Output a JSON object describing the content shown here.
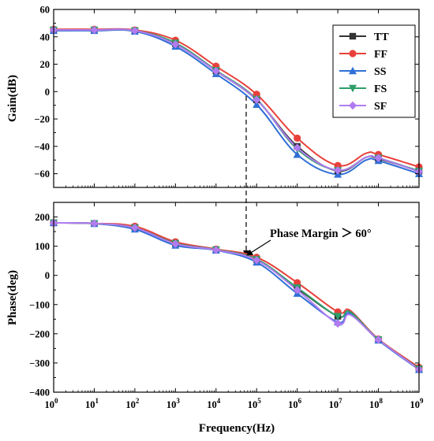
{
  "chart_data": [
    {
      "type": "line",
      "panel": "top",
      "xlabel": "",
      "ylabel": "Gain(dB)",
      "x_scale": "log",
      "xlim": [
        1,
        1000000000
      ],
      "ylim": [
        -70,
        60
      ],
      "yticks": [
        -60,
        -40,
        -20,
        0,
        20,
        40,
        60
      ],
      "ytick_labels": [
        "−60",
        "−40",
        "−20",
        "0",
        "20",
        "40",
        "60"
      ],
      "legend": {
        "position": "top-right",
        "entries": [
          "TT",
          "FF",
          "SS",
          "FS",
          "SF"
        ]
      },
      "series": [
        {
          "name": "TT",
          "color": "#333333",
          "marker": "square",
          "x": [
            1,
            10,
            100,
            1000,
            10000,
            100000,
            1000000,
            10000000,
            50000000,
            100000000,
            1000000000
          ],
          "y": [
            45,
            45,
            44.5,
            35,
            15,
            -6,
            -40,
            -58,
            -48,
            -49,
            -58
          ]
        },
        {
          "name": "FF",
          "color": "#e8403a",
          "marker": "circle",
          "x": [
            1,
            10,
            100,
            1000,
            10000,
            100000,
            1000000,
            10000000,
            50000000,
            100000000,
            1000000000
          ],
          "y": [
            45.5,
            45.5,
            45,
            37.5,
            18.5,
            -2,
            -34,
            -54,
            -45,
            -46,
            -55
          ]
        },
        {
          "name": "SS",
          "color": "#2f6fd6",
          "marker": "triangle-up",
          "x": [
            1,
            10,
            100,
            1000,
            10000,
            100000,
            1000000,
            10000000,
            50000000,
            100000000,
            1000000000
          ],
          "y": [
            44.5,
            44.5,
            44,
            33,
            13,
            -9.5,
            -46,
            -60.5,
            -50,
            -50.5,
            -60
          ]
        },
        {
          "name": "FS",
          "color": "#2e9e6a",
          "marker": "triangle-down",
          "x": [
            1,
            10,
            100,
            1000,
            10000,
            100000,
            1000000,
            10000000,
            50000000,
            100000000,
            1000000000
          ],
          "y": [
            45,
            45,
            44.5,
            35.5,
            15.5,
            -5.5,
            -42,
            -57.5,
            -48,
            -48.5,
            -58
          ]
        },
        {
          "name": "SF",
          "color": "#b07cf0",
          "marker": "diamond",
          "x": [
            1,
            10,
            100,
            1000,
            10000,
            100000,
            1000000,
            10000000,
            50000000,
            100000000,
            1000000000
          ],
          "y": [
            45,
            45,
            44.5,
            34.5,
            15,
            -6,
            -41,
            -57.5,
            -48,
            -48.5,
            -58.5
          ]
        }
      ],
      "annotations": [
        {
          "type": "dashed-arrow",
          "x": 50000,
          "y_from": 2,
          "direction": "down"
        }
      ]
    },
    {
      "type": "line",
      "panel": "bottom",
      "xlabel": "Frequency(Hz)",
      "ylabel": "Phase(deg)",
      "x_scale": "log",
      "xlim": [
        1,
        1000000000
      ],
      "ylim": [
        -400,
        250
      ],
      "xticks": [
        1,
        10,
        100,
        1000,
        10000,
        100000,
        1000000,
        10000000,
        100000000,
        1000000000
      ],
      "xtick_exponents": [
        "0",
        "1",
        "2",
        "3",
        "4",
        "5",
        "6",
        "7",
        "8",
        "9"
      ],
      "xtick_base": "10",
      "yticks": [
        -400,
        -300,
        -200,
        -100,
        0,
        100,
        200
      ],
      "ytick_labels": [
        "−400",
        "−300",
        "−200",
        "−100",
        "0",
        "100",
        "200"
      ],
      "series": [
        {
          "name": "TT",
          "color": "#333333",
          "marker": "square",
          "x": [
            1,
            10,
            100,
            1000,
            10000,
            100000,
            1000000,
            10000000,
            20000000,
            100000000,
            1000000000
          ],
          "y": [
            180,
            178,
            165,
            110,
            88,
            55,
            -45,
            -140,
            -125,
            -220,
            -320
          ]
        },
        {
          "name": "FF",
          "color": "#e8403a",
          "marker": "circle",
          "x": [
            1,
            10,
            100,
            1000,
            10000,
            100000,
            1000000,
            10000000,
            20000000,
            100000000,
            1000000000
          ],
          "y": [
            180,
            178,
            168,
            115,
            90,
            62,
            -25,
            -125,
            -120,
            -218,
            -315
          ]
        },
        {
          "name": "SS",
          "color": "#2f6fd6",
          "marker": "triangle-up",
          "x": [
            1,
            10,
            100,
            1000,
            10000,
            100000,
            1000000,
            10000000,
            20000000,
            100000000,
            1000000000
          ],
          "y": [
            180,
            177,
            158,
            103,
            86,
            45,
            -62,
            -160,
            -130,
            -222,
            -323
          ]
        },
        {
          "name": "FS",
          "color": "#2e9e6a",
          "marker": "triangle-down",
          "x": [
            1,
            10,
            100,
            1000,
            10000,
            100000,
            1000000,
            10000000,
            20000000,
            100000000,
            1000000000
          ],
          "y": [
            180,
            178,
            163,
            110,
            88,
            55,
            -42,
            -140,
            -125,
            -220,
            -320
          ]
        },
        {
          "name": "SF",
          "color": "#b07cf0",
          "marker": "diamond",
          "x": [
            1,
            10,
            100,
            1000,
            10000,
            100000,
            1000000,
            10000000,
            20000000,
            100000000,
            1000000000
          ],
          "y": [
            180,
            178,
            163,
            108,
            87,
            52,
            -50,
            -165,
            -135,
            -220,
            -322
          ]
        }
      ],
      "annotations": [
        {
          "type": "arrow",
          "text": "Phase Margin ＞ 60°",
          "target_x": 50000,
          "target_y": 65
        }
      ]
    }
  ]
}
